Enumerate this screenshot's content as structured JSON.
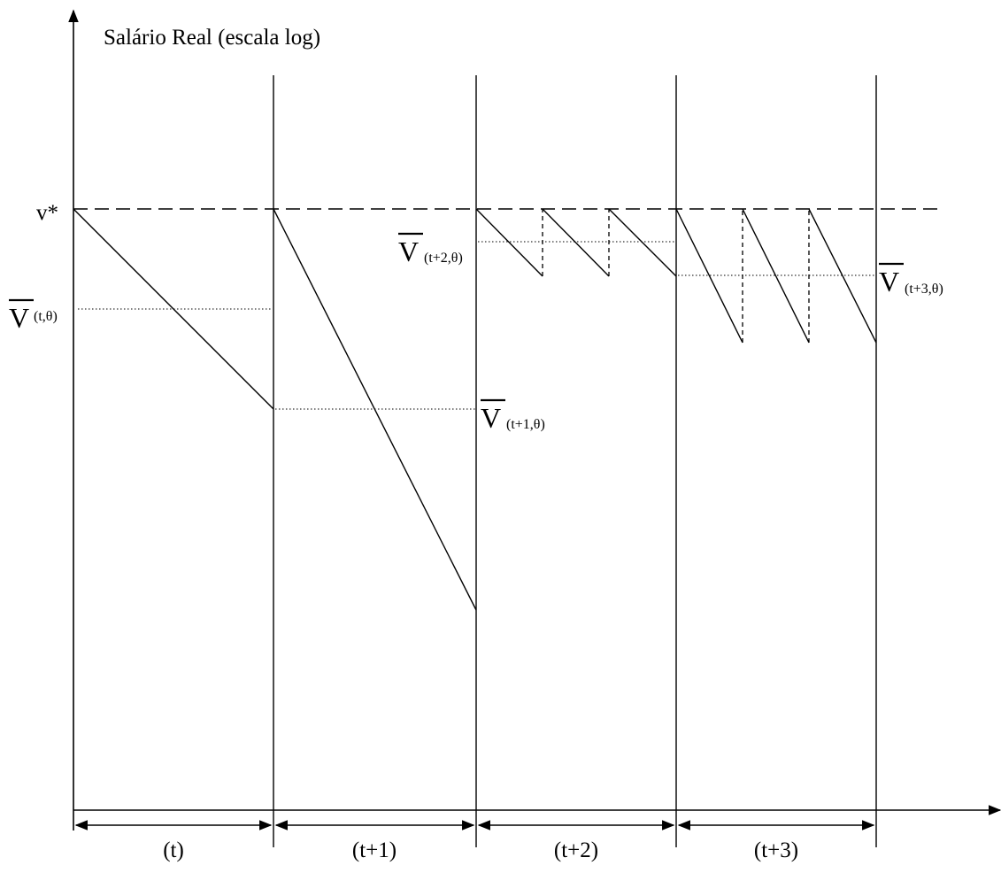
{
  "diagram": {
    "y_axis_title": "Salário Real (escala log)",
    "reference_label": "v*",
    "avg_labels": [
      {
        "main": "V",
        "sub": "(t,θ)"
      },
      {
        "main": "V",
        "sub": "(t+1,θ)"
      },
      {
        "main": "V",
        "sub": "(t+2,θ)"
      },
      {
        "main": "V",
        "sub": "(t+3,θ)"
      }
    ],
    "periods": [
      "(t)",
      "(t+1)",
      "(t+2)",
      "(t+3)"
    ]
  }
}
